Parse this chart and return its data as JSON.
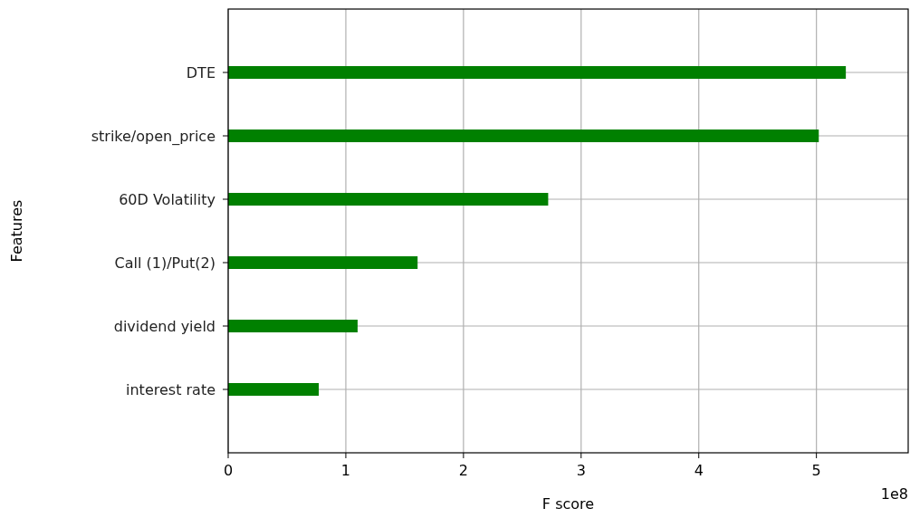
{
  "chart_data": {
    "type": "bar",
    "orientation": "horizontal",
    "xlabel": "F score",
    "ylabel": "Features",
    "categories": [
      "DTE",
      "strike/open_price",
      "60D Volatility",
      "Call (1)/Put(2)",
      "dividend yield",
      "interest rate"
    ],
    "values": [
      5.25,
      5.02,
      2.72,
      1.61,
      1.1,
      0.77
    ],
    "color": "#008000",
    "xlim": [
      0,
      5.78
    ],
    "xticks": [
      0,
      1,
      2,
      3,
      4,
      5
    ],
    "annotations": [
      "1e8"
    ],
    "grid": true
  }
}
